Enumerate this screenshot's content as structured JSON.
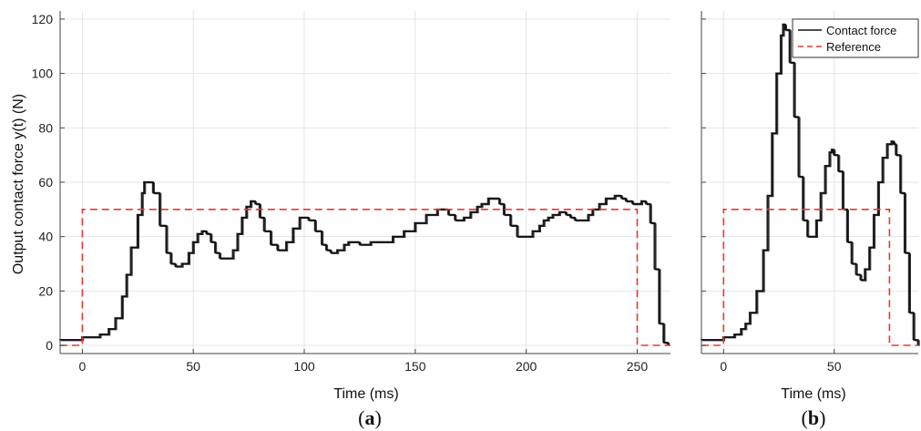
{
  "chart_data": [
    {
      "type": "line",
      "panel_label": "a",
      "xlabel": "Time (ms)",
      "ylabel": "Output contact force y(t) (N)",
      "xlim": [
        -10,
        265
      ],
      "ylim": [
        -3,
        123
      ],
      "xticks": [
        0,
        50,
        100,
        150,
        200,
        250
      ],
      "yticks": [
        0,
        20,
        40,
        60,
        80,
        100,
        120
      ],
      "grid": true,
      "series": [
        {
          "name": "Contact force",
          "color": "#111111",
          "x": [
            -10,
            0,
            8,
            12,
            15,
            18,
            20,
            22,
            25,
            27,
            28,
            30,
            32,
            35,
            38,
            40,
            42,
            45,
            48,
            50,
            52,
            54,
            56,
            58,
            60,
            62,
            65,
            68,
            70,
            72,
            74,
            76,
            77,
            78,
            80,
            82,
            85,
            88,
            90,
            92,
            95,
            98,
            100,
            102,
            105,
            108,
            110,
            112,
            115,
            118,
            120,
            122,
            125,
            128,
            130,
            135,
            140,
            145,
            150,
            155,
            160,
            162,
            165,
            168,
            170,
            172,
            175,
            178,
            180,
            183,
            185,
            188,
            190,
            193,
            196,
            198,
            200,
            203,
            206,
            208,
            210,
            212,
            215,
            218,
            220,
            222,
            225,
            228,
            230,
            233,
            236,
            240,
            243,
            245,
            248,
            250,
            252,
            254,
            256,
            258,
            260,
            262,
            264
          ],
          "y": [
            2,
            3,
            4,
            6,
            10,
            18,
            26,
            36,
            48,
            56,
            60,
            60,
            56,
            44,
            34,
            30,
            29,
            30,
            34,
            38,
            41,
            42,
            41,
            38,
            34,
            32,
            32,
            35,
            41,
            47,
            51,
            53,
            53,
            52,
            47,
            42,
            37,
            35,
            35,
            38,
            43,
            47,
            47,
            46,
            42,
            37,
            35,
            34,
            35,
            37,
            38,
            38,
            37,
            37,
            38,
            38,
            40,
            42,
            45,
            48,
            50,
            50,
            48,
            46,
            46,
            47,
            49,
            51,
            52,
            54,
            54,
            52,
            48,
            44,
            40,
            40,
            40,
            42,
            44,
            46,
            47,
            48,
            49,
            48,
            47,
            46,
            46,
            48,
            50,
            52,
            54,
            55,
            54,
            53,
            52,
            52,
            53,
            52,
            45,
            28,
            8,
            1,
            0
          ]
        },
        {
          "name": "Reference",
          "color": "#e8382f",
          "dashed": true,
          "x": [
            -10,
            0,
            0,
            250,
            250,
            265
          ],
          "y": [
            0,
            0,
            50,
            50,
            0,
            0
          ]
        }
      ]
    },
    {
      "type": "line",
      "panel_label": "b",
      "xlabel": "Time (ms)",
      "ylabel": "",
      "xlim": [
        -10,
        88
      ],
      "ylim": [
        -3,
        123
      ],
      "xticks": [
        0,
        50
      ],
      "yticks": [
        0,
        20,
        40,
        60,
        80,
        100,
        120
      ],
      "grid": true,
      "legend": "top-right",
      "series": [
        {
          "name": "Contact force",
          "color": "#111111",
          "x": [
            -10,
            0,
            5,
            8,
            10,
            12,
            15,
            18,
            20,
            22,
            24,
            26,
            27,
            28,
            30,
            32,
            34,
            36,
            38,
            40,
            42,
            44,
            46,
            48,
            49,
            50,
            52,
            54,
            56,
            58,
            60,
            62,
            64,
            66,
            68,
            70,
            72,
            74,
            76,
            77,
            78,
            80,
            82,
            84,
            86,
            88
          ],
          "y": [
            2,
            3,
            4,
            6,
            8,
            12,
            20,
            35,
            55,
            78,
            100,
            114,
            118,
            116,
            104,
            84,
            62,
            46,
            40,
            40,
            46,
            56,
            66,
            71,
            72,
            70,
            64,
            50,
            38,
            30,
            26,
            24,
            28,
            36,
            48,
            60,
            69,
            74,
            75,
            74,
            70,
            56,
            34,
            12,
            2,
            0
          ]
        },
        {
          "name": "Reference",
          "color": "#e8382f",
          "dashed": true,
          "x": [
            -10,
            0,
            0,
            75,
            75,
            88
          ],
          "y": [
            0,
            0,
            50,
            50,
            0,
            0
          ]
        }
      ]
    }
  ]
}
